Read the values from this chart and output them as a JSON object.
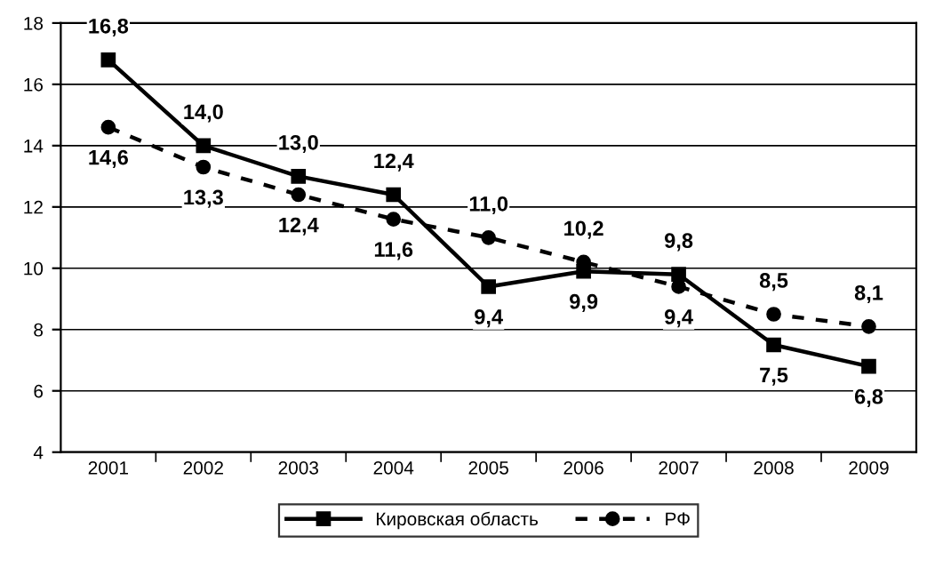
{
  "chart_data": {
    "type": "line",
    "categories": [
      "2001",
      "2002",
      "2003",
      "2004",
      "2005",
      "2006",
      "2007",
      "2008",
      "2009"
    ],
    "series": [
      {
        "name": "Кировская область",
        "color": "#000000",
        "marker": "square",
        "line_style": "solid",
        "values": [
          16.8,
          14.0,
          13.0,
          12.4,
          9.4,
          9.9,
          9.8,
          7.5,
          6.8
        ],
        "value_labels": [
          "16,8",
          "14,0",
          "13,0",
          "12,4",
          "9,4",
          "9,9",
          "9,8",
          "7,5",
          "6,8"
        ]
      },
      {
        "name": "РФ",
        "color": "#000000",
        "marker": "circle",
        "line_style": "dashed",
        "values": [
          14.6,
          13.3,
          12.4,
          11.6,
          11.0,
          10.2,
          9.4,
          8.5,
          8.1
        ],
        "value_labels": [
          "14,6",
          "13,3",
          "12,4",
          "11,6",
          "11,0",
          "10,2",
          "9,4",
          "8,5",
          "8,1"
        ]
      }
    ],
    "ylim": [
      4,
      18
    ],
    "yticks": [
      4,
      6,
      8,
      10,
      12,
      14,
      16,
      18
    ],
    "grid": "y",
    "legend": "bottom"
  }
}
